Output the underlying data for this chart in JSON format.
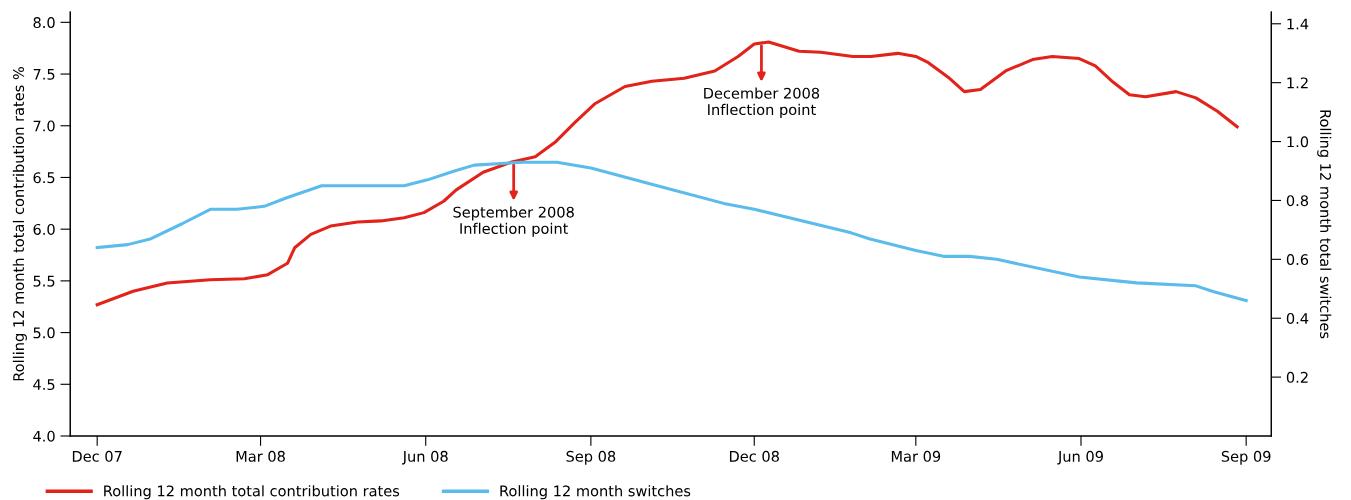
{
  "chart_data": {
    "type": "line",
    "ylabel": "Rolling 12 month total contribution rates %",
    "y2label": "Rolling 12 month total switches",
    "xlim": [
      "2007-11-16",
      "2009-09-15"
    ],
    "xticks": [
      {
        "value": "2007-12-01",
        "label": "Dec 07"
      },
      {
        "value": "2008-03-01",
        "label": "Mar 08"
      },
      {
        "value": "2008-06-01",
        "label": "Jun 08"
      },
      {
        "value": "2008-09-01",
        "label": "Sep 08"
      },
      {
        "value": "2008-12-01",
        "label": "Dec 08"
      },
      {
        "value": "2009-03-01",
        "label": "Mar 09"
      },
      {
        "value": "2009-06-01",
        "label": "Jun 09"
      },
      {
        "value": "2009-09-01",
        "label": "Sep 09"
      }
    ],
    "ylim": [
      4,
      8.1
    ],
    "yticks": [
      {
        "value": 4,
        "label": "4.0"
      },
      4.5,
      {
        "value": 5,
        "label": "5.0"
      },
      5.5,
      {
        "value": 6,
        "label": "6.0"
      },
      6.5,
      {
        "value": 7,
        "label": "7.0"
      },
      7.5,
      {
        "value": 8,
        "label": "8.0"
      }
    ],
    "y2lim": [
      0,
      1.44
    ],
    "y2ticks": [
      0.2,
      0.4,
      0.6,
      0.8,
      {
        "value": 1,
        "label": "1.0"
      },
      1.2,
      1.4
    ],
    "grid": false,
    "legend": "bottom left",
    "marker": "none",
    "line_style": "solid",
    "series": [
      {
        "name": "Rolling 12 month total contribution rates",
        "color": "#e2231a",
        "axis": "y",
        "x": [
          "2007-12-01",
          "2007-12-21",
          "2008-01-09",
          "2008-02-02",
          "2008-02-21",
          "2008-03-05",
          "2008-03-16",
          "2008-03-20",
          "2008-03-29",
          "2008-04-09",
          "2008-04-24",
          "2008-05-07",
          "2008-05-20",
          "2008-05-31",
          "2008-06-11",
          "2008-06-18",
          "2008-07-03",
          "2008-07-19",
          "2008-08-01",
          "2008-08-12",
          "2008-08-23",
          "2008-09-03",
          "2008-09-20",
          "2008-10-05",
          "2008-10-23",
          "2008-11-09",
          "2008-11-22",
          "2008-12-01",
          "2008-12-09",
          "2008-12-26",
          "2009-01-07",
          "2009-01-25",
          "2009-02-04",
          "2009-02-19",
          "2009-03-01",
          "2009-03-08",
          "2009-03-19",
          "2009-03-28",
          "2009-04-06",
          "2009-04-20",
          "2009-05-05",
          "2009-05-16",
          "2009-05-31",
          "2009-06-09",
          "2009-06-19",
          "2009-06-28",
          "2009-07-07",
          "2009-07-24",
          "2009-08-04",
          "2009-08-16",
          "2009-08-27"
        ],
        "values": [
          5.27,
          5.4,
          5.48,
          5.51,
          5.52,
          5.56,
          5.67,
          5.82,
          5.95,
          6.03,
          6.07,
          6.08,
          6.11,
          6.16,
          6.27,
          6.38,
          6.55,
          6.65,
          6.7,
          6.84,
          7.03,
          7.21,
          7.38,
          7.43,
          7.46,
          7.53,
          7.67,
          7.79,
          7.81,
          7.72,
          7.71,
          7.67,
          7.67,
          7.7,
          7.67,
          7.61,
          7.47,
          7.33,
          7.35,
          7.53,
          7.64,
          7.67,
          7.65,
          7.58,
          7.42,
          7.3,
          7.28,
          7.33,
          7.27,
          7.14,
          6.99
        ]
      },
      {
        "name": "Rolling 12 month switches",
        "color": "#5bbcec",
        "axis": "y2",
        "x": [
          "2007-12-01",
          "2007-12-18",
          "2007-12-31",
          "2008-01-17",
          "2008-02-02",
          "2008-02-17",
          "2008-03-03",
          "2008-03-16",
          "2008-04-04",
          "2008-04-22",
          "2008-05-20",
          "2008-06-02",
          "2008-06-17",
          "2008-06-28",
          "2008-07-25",
          "2008-08-13",
          "2008-09-01",
          "2008-10-08",
          "2008-11-14",
          "2008-12-01",
          "2009-01-24",
          "2009-02-03",
          "2009-03-01",
          "2009-03-17",
          "2009-03-31",
          "2009-04-15",
          "2009-05-31",
          "2009-07-02",
          "2009-08-04",
          "2009-08-14",
          "2009-09-01"
        ],
        "values": [
          0.64,
          0.65,
          0.67,
          0.72,
          0.77,
          0.77,
          0.78,
          0.81,
          0.85,
          0.85,
          0.85,
          0.87,
          0.9,
          0.92,
          0.93,
          0.93,
          0.91,
          0.85,
          0.79,
          0.77,
          0.69,
          0.67,
          0.63,
          0.61,
          0.61,
          0.6,
          0.54,
          0.52,
          0.51,
          0.49,
          0.46
        ]
      }
    ],
    "annotations": [
      {
        "text": "September 2008\nInflection point",
        "x": "2008-07-20",
        "y": 6.65
      },
      {
        "text": "December 2008\nInflection point",
        "x": "2008-12-05",
        "y": 7.8
      }
    ]
  }
}
